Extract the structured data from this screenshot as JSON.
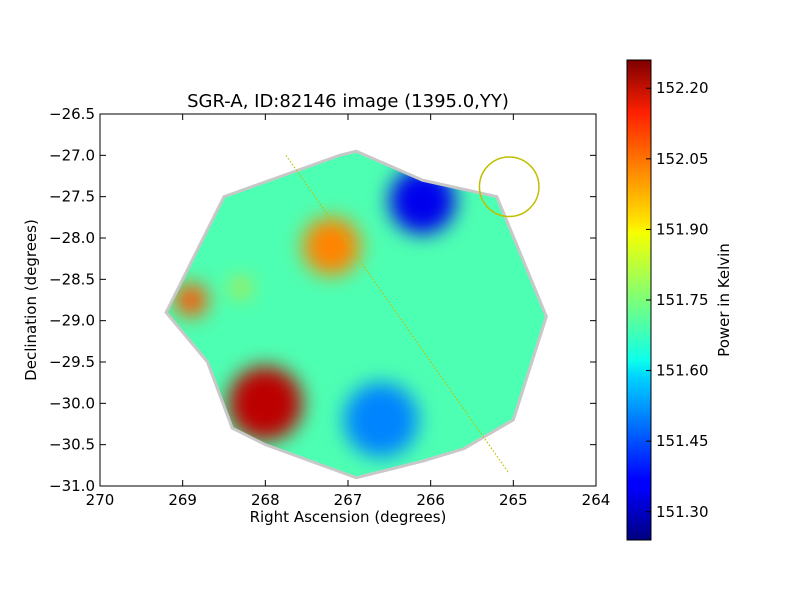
{
  "chart_data": {
    "type": "heatmap",
    "title": "SGR-A, ID:82146 image (1395.0,YY)",
    "xlabel": "Right Ascension (degrees)",
    "ylabel": "Declination (degrees)",
    "xlim": [
      270,
      264
    ],
    "ylim": [
      -31.0,
      -26.5
    ],
    "x_ticks": [
      "270",
      "269",
      "268",
      "267",
      "266",
      "265",
      "264"
    ],
    "y_ticks": [
      "−26.5",
      "−27.0",
      "−27.5",
      "−28.0",
      "−28.5",
      "−29.0",
      "−29.5",
      "−30.0",
      "−30.5",
      "−31.0"
    ],
    "colorbar": {
      "label": "Power in Kelvin",
      "range": [
        151.24,
        152.26
      ],
      "ticks": [
        "152.20",
        "152.05",
        "151.90",
        "151.75",
        "151.60",
        "151.45",
        "151.30"
      ],
      "colormap": "jet"
    },
    "footprint_polygon": [
      [
        266.9,
        -26.95
      ],
      [
        266.1,
        -27.3
      ],
      [
        265.2,
        -27.5
      ],
      [
        264.6,
        -28.95
      ],
      [
        265.0,
        -30.2
      ],
      [
        265.6,
        -30.55
      ],
      [
        266.1,
        -30.7
      ],
      [
        266.9,
        -30.9
      ],
      [
        268.0,
        -30.5
      ],
      [
        268.4,
        -30.3
      ],
      [
        268.7,
        -29.5
      ],
      [
        269.2,
        -28.9
      ],
      [
        268.5,
        -27.5
      ],
      [
        267.1,
        -27.0
      ]
    ],
    "hot_spots": [
      {
        "ra": 268.0,
        "dec": -30.0,
        "value": 152.2,
        "radius": 0.45
      },
      {
        "ra": 267.2,
        "dec": -28.1,
        "value": 152.0,
        "radius": 0.35
      },
      {
        "ra": 268.9,
        "dec": -28.75,
        "value": 152.05,
        "radius": 0.2
      },
      {
        "ra": 266.1,
        "dec": -27.55,
        "value": 151.35,
        "radius": 0.4
      },
      {
        "ra": 266.6,
        "dec": -30.2,
        "value": 151.5,
        "radius": 0.45
      },
      {
        "ra": 268.3,
        "dec": -28.6,
        "value": 151.92,
        "radius": 0.1
      }
    ],
    "base_value": 151.7,
    "annotations": {
      "circle": {
        "ra": 265.05,
        "dec": -27.38,
        "radius_deg": 0.36,
        "color": "#bfbf00"
      },
      "dotted_line": {
        "from": [
          267.75,
          -27.0
        ],
        "to": [
          265.05,
          -30.85
        ],
        "color": "#bfbf00"
      }
    },
    "grid": false
  }
}
